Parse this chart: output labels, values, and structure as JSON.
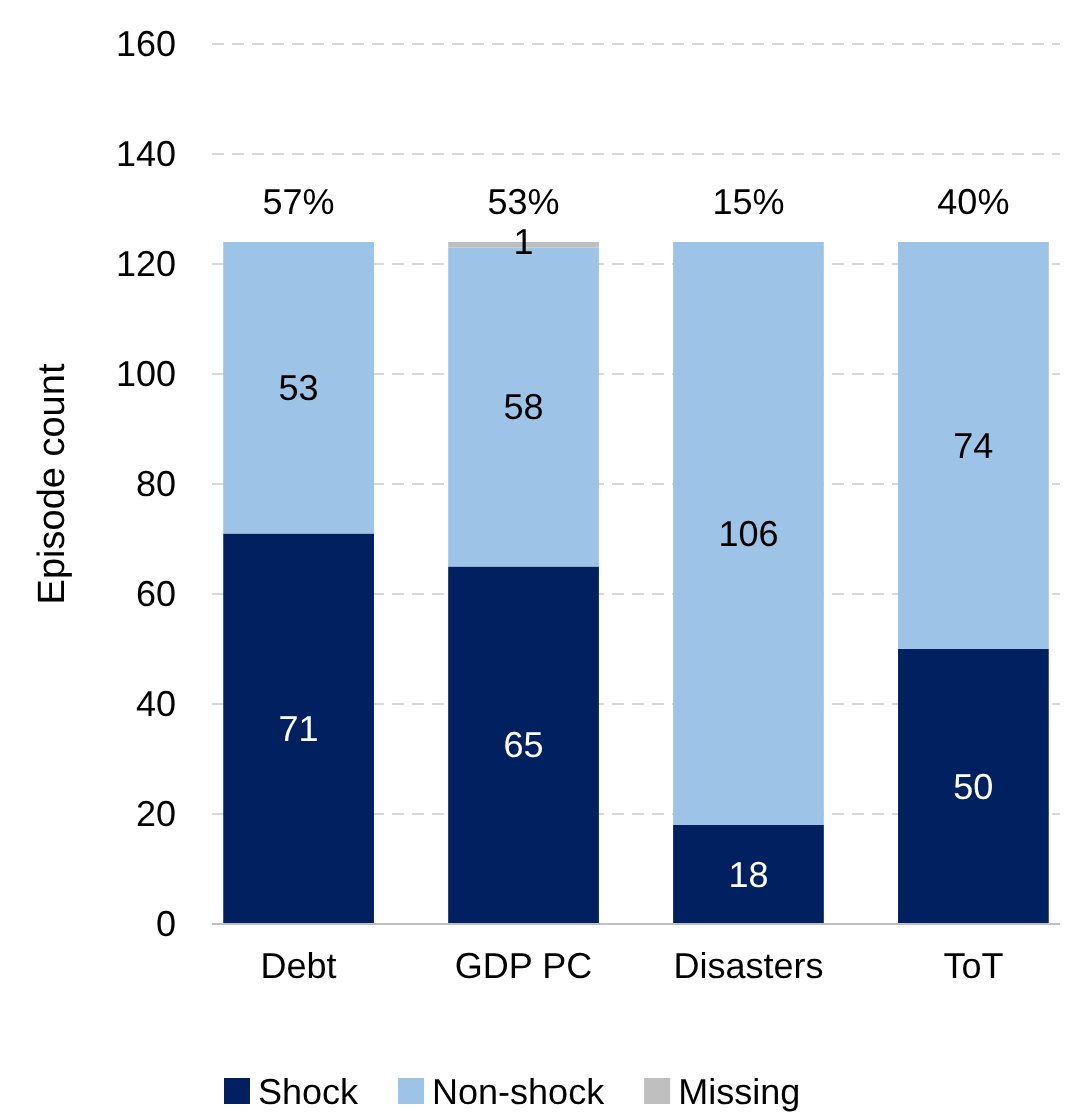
{
  "chart_data": {
    "type": "bar",
    "stacked": true,
    "ylabel": "Episode count",
    "categories": [
      "Debt",
      "GDP PC",
      "Disasters",
      "ToT"
    ],
    "series": [
      {
        "name": "Shock",
        "color": "#002060",
        "values": [
          71,
          65,
          18,
          50
        ],
        "value_labels": [
          "71",
          "65",
          "18",
          "50"
        ]
      },
      {
        "name": "Non-shock",
        "color": "#9dc3e6",
        "values": [
          53,
          58,
          106,
          74
        ],
        "value_labels": [
          "53",
          "58",
          "106",
          "74"
        ]
      },
      {
        "name": "Missing",
        "color": "#bfbfbf",
        "values": [
          0,
          1,
          0,
          0
        ],
        "value_labels": [
          null,
          "1",
          null,
          null
        ]
      }
    ],
    "annotations": [
      {
        "text": "57%",
        "x": "Debt",
        "y": 124
      },
      {
        "text": "53%",
        "x": "GDP PC",
        "y": 124
      },
      {
        "text": "15%",
        "x": "Disasters",
        "y": 124
      },
      {
        "text": "40%",
        "x": "ToT",
        "y": 124
      }
    ],
    "ylim": [
      0,
      160
    ],
    "yticks": [
      0,
      20,
      40,
      60,
      80,
      100,
      120,
      140,
      160
    ],
    "grid": "y",
    "legend": "bottom"
  }
}
